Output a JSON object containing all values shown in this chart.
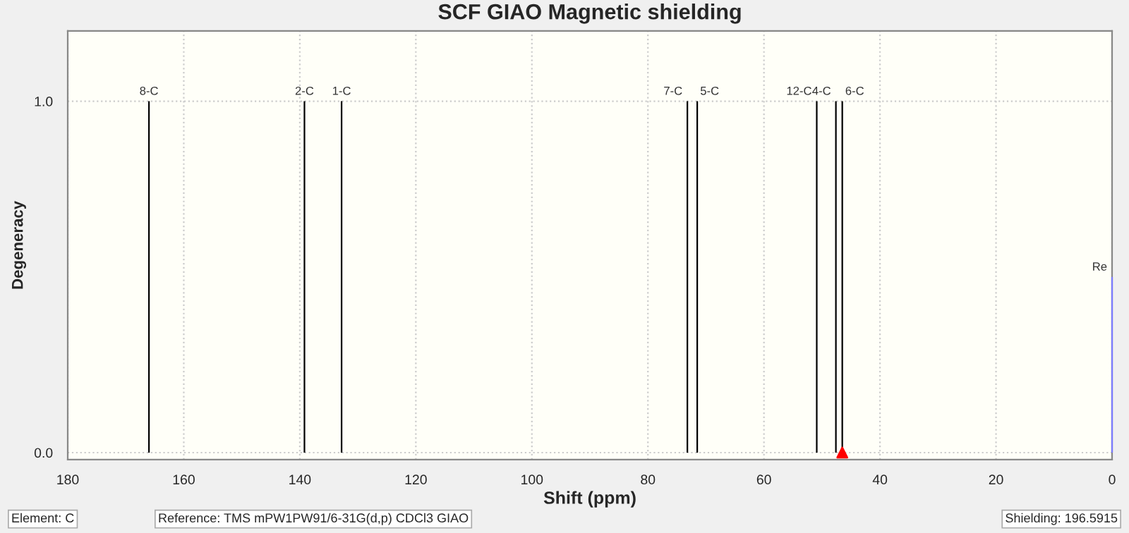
{
  "chart_data": {
    "type": "bar",
    "title": "SCF GIAO Magnetic shielding",
    "xlabel": "Shift (ppm)",
    "ylabel": "Degeneracy",
    "xlim": [
      180,
      0
    ],
    "xticks": [
      180,
      160,
      140,
      120,
      100,
      80,
      60,
      40,
      20,
      0
    ],
    "ylim": [
      -0.02,
      1.2
    ],
    "yticks": [
      {
        "value": 0,
        "label": "0.0"
      },
      {
        "value": 1,
        "label": "1.0"
      }
    ],
    "grid": true,
    "series": [
      {
        "color": "#000000",
        "x": [
          166.0,
          139.2,
          132.8,
          73.2,
          71.5,
          50.9,
          47.6,
          46.5
        ],
        "values": [
          1,
          1,
          1,
          1,
          1,
          1,
          1,
          1
        ]
      },
      {
        "type": "bar",
        "color": "#7b7bff",
        "x": [
          0
        ],
        "values": [
          0.5
        ]
      },
      {
        "type": "scatter",
        "color": "#ff0000",
        "marker": "triangle",
        "x": [
          46.5
        ],
        "values": [
          0
        ]
      }
    ],
    "annotations": [
      {
        "text": "8-C",
        "x": 166.0,
        "y": 1
      },
      {
        "text": "2-C",
        "x": 139.2,
        "y": 1
      },
      {
        "text": "1-C",
        "x": 132.8,
        "y": 1
      },
      {
        "text": "7-C",
        "x": 73.2,
        "y": 1
      },
      {
        "text": "5-C",
        "x": 71.5,
        "y": 1
      },
      {
        "text": "12-C",
        "x": 50.9,
        "y": 1
      },
      {
        "text": "4-C",
        "x": 47.6,
        "y": 1
      },
      {
        "text": "6-C",
        "x": 46.5,
        "y": 1
      },
      {
        "text": "Re",
        "x": 0,
        "y": 0.5
      },
      "Element: C",
      "Reference: TMS mPW1PW91/6-31G(d,p) CDCl3 GIAO",
      "Shielding: 196.5915"
    ]
  }
}
